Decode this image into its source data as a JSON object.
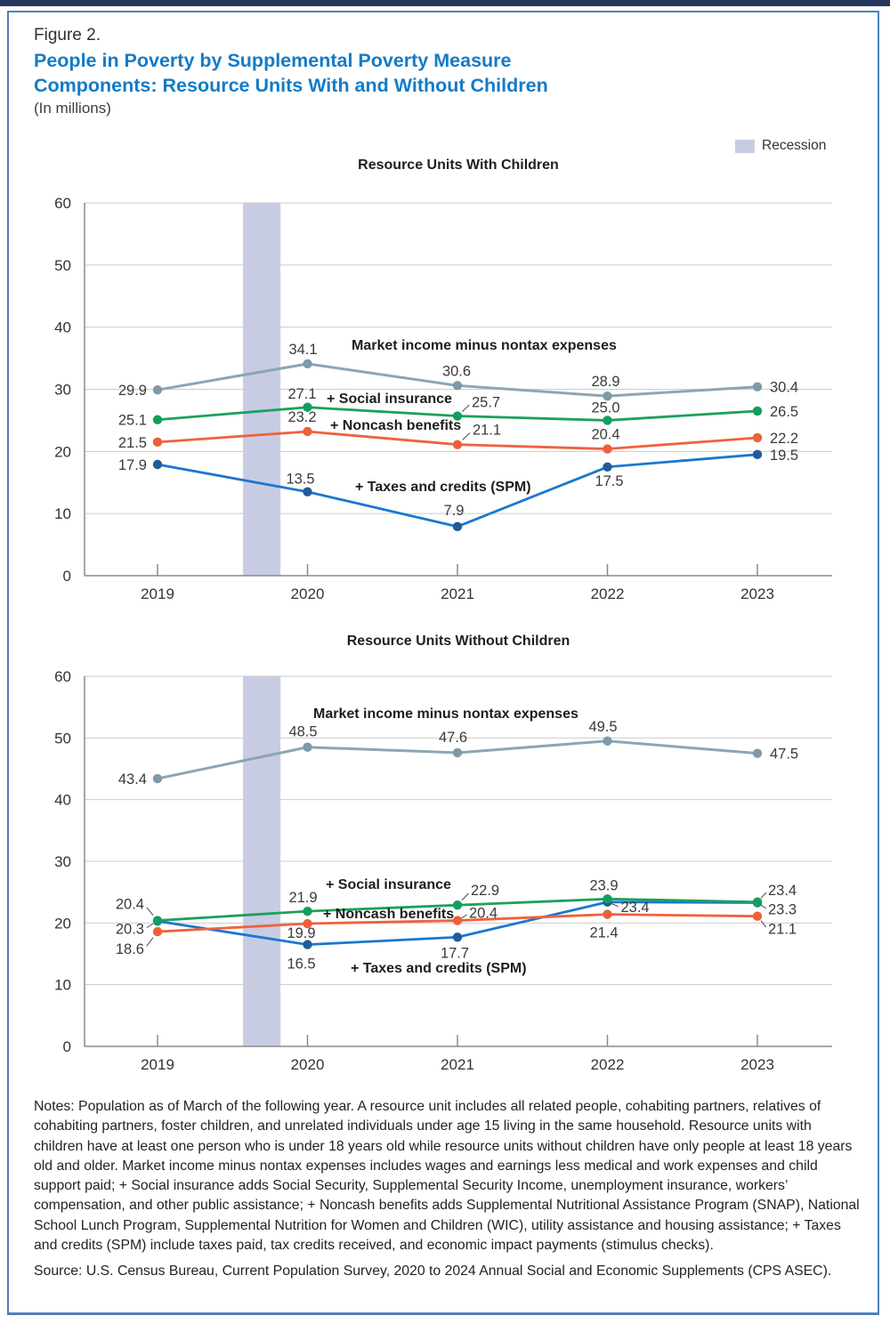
{
  "figure": {
    "kicker": "Figure 2.",
    "title": "People in Poverty by Supplemental Poverty Measure Components: Resource Units With and Without Children",
    "subtitle": "(In millions)",
    "legend": {
      "recession_label": "Recession",
      "recession_color": "#c8cce3"
    }
  },
  "colors": {
    "title_blue": "#147bc7",
    "border_blue": "#4e7fbe",
    "top_bar_navy": "#25365f",
    "grid": "#cbcbcb",
    "axis": "#8a8a8a",
    "label_text": "#3a3a3a",
    "recession_band": "#c8cce3"
  },
  "chart_data": [
    {
      "type": "line",
      "title": "Resource Units With Children",
      "x": [
        2019,
        2020,
        2021,
        2022,
        2023
      ],
      "xlabel": "",
      "ylabel": "",
      "ylim": [
        0,
        60
      ],
      "yticks": [
        0,
        10,
        20,
        30,
        40,
        50,
        60
      ],
      "grid": true,
      "recession_band_x": [
        2019.57,
        2019.82
      ],
      "series": [
        {
          "name": "Market income minus nontax expenses",
          "color": "#8da5b3",
          "dot_color": "#7e99a9",
          "values": [
            29.9,
            34.1,
            30.6,
            28.9,
            30.4
          ]
        },
        {
          "name": "+ Social insurance",
          "color": "#1ca05f",
          "dot_color": "#139e5f",
          "values": [
            25.1,
            27.1,
            25.7,
            25.0,
            26.5
          ]
        },
        {
          "name": "+ Noncash benefits",
          "color": "#f0613c",
          "dot_color": "#ee5f3b",
          "values": [
            21.5,
            23.2,
            21.1,
            20.4,
            22.2
          ]
        },
        {
          "name": "+ Taxes and credits (SPM)",
          "color": "#1b76d1",
          "dot_color": "#1f5c99",
          "values": [
            17.9,
            13.5,
            7.9,
            17.5,
            19.5
          ]
        }
      ]
    },
    {
      "type": "line",
      "title": "Resource Units Without Children",
      "x": [
        2019,
        2020,
        2021,
        2022,
        2023
      ],
      "xlabel": "",
      "ylabel": "",
      "ylim": [
        0,
        60
      ],
      "yticks": [
        0,
        10,
        20,
        30,
        40,
        50,
        60
      ],
      "grid": true,
      "recession_band_x": [
        2019.57,
        2019.82
      ],
      "series": [
        {
          "name": "Market income minus nontax expenses",
          "color": "#8da5b3",
          "dot_color": "#7e99a9",
          "values": [
            43.4,
            48.5,
            47.6,
            49.5,
            47.5
          ]
        },
        {
          "name": "+ Social insurance",
          "color": "#1ca05f",
          "dot_color": "#139e5f",
          "values": [
            20.4,
            21.9,
            22.9,
            23.9,
            23.4
          ]
        },
        {
          "name": "+ Noncash benefits",
          "color": "#f0613c",
          "dot_color": "#ee5f3b",
          "values": [
            18.6,
            19.9,
            20.4,
            21.4,
            21.1
          ]
        },
        {
          "name": "+ Taxes and credits (SPM)",
          "color": "#1b76d1",
          "dot_color": "#1f5c99",
          "values": [
            20.3,
            16.5,
            17.7,
            23.4,
            23.3
          ]
        }
      ]
    }
  ],
  "notes": {
    "body": "Notes: Population as of March of the following year. A resource unit includes all related people, cohabiting partners, relatives of cohabiting partners, foster children, and unrelated individuals under age 15 living in the same household. Resource units with children have at least one person who is under 18 years old while resource units without children have only people at least 18 years old and older. Market income minus nontax expenses includes wages and earnings less medical and work expenses and child support paid; + Social insurance adds Social Security, Supplemental Security Income, unemployment insurance, workers’ compensation, and other public assistance; + Noncash benefits adds Supplemental Nutritional Assistance Program (SNAP), National School Lunch Program, Supplemental Nutrition for Women and Children (WIC), utility assistance and housing assistance; + Taxes and credits (SPM) include taxes paid, tax credits received, and economic impact payments (stimulus checks).",
    "source": "Source: U.S. Census Bureau, Current Population Survey, 2020 to 2024 Annual Social and Economic Supplements (CPS ASEC)."
  }
}
